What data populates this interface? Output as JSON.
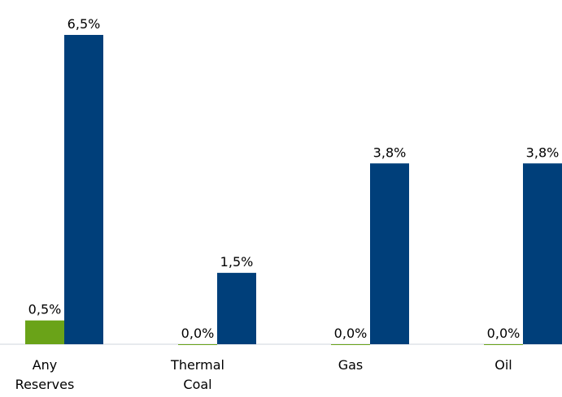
{
  "chart_data": {
    "type": "bar",
    "categories": [
      [
        "Any",
        "Reserves"
      ],
      [
        "Thermal",
        "Coal"
      ],
      [
        "Gas"
      ],
      [
        "Oil"
      ]
    ],
    "series": [
      {
        "color": "#6aa318",
        "values": [
          0.5,
          0.0,
          0.0,
          0.0
        ],
        "labels": [
          "0,5%",
          "0,0%",
          "0,0%",
          "0,0%"
        ]
      },
      {
        "color": "#003f7a",
        "values": [
          6.5,
          1.5,
          3.8,
          3.8
        ],
        "labels": [
          "6,5%",
          "1,5%",
          "3,8%",
          "3,8%"
        ]
      }
    ],
    "ylim": [
      0,
      6.5
    ],
    "grid": false,
    "legend": "none"
  }
}
